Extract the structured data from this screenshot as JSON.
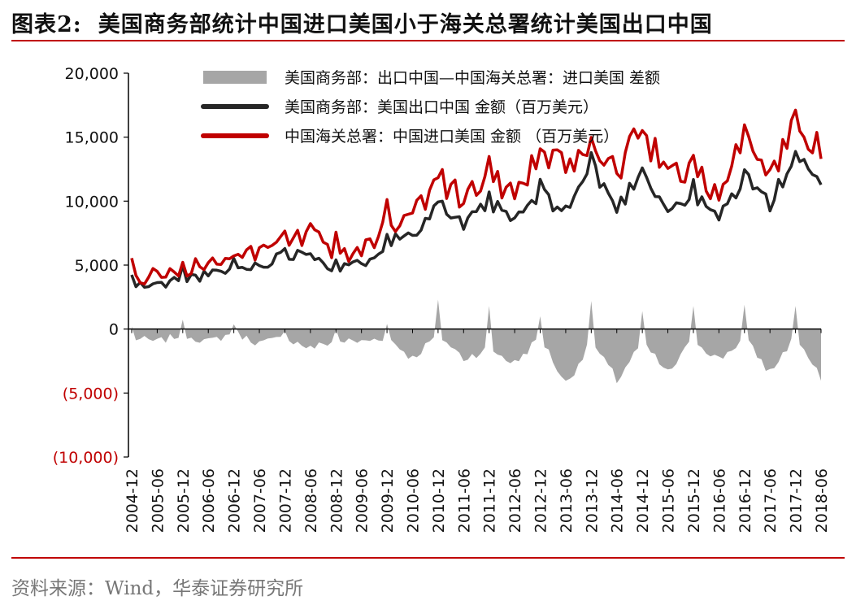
{
  "figure": {
    "label": "图表2:",
    "title": "美国商务部统计中国进口美国小于海关总署统计美国出口中国",
    "source": "资料来源：Wind，华泰证券研究所"
  },
  "colors": {
    "accent": "#c00000",
    "diff": "#a6a6a6",
    "us_series": "#262626",
    "cn_series": "#c00000",
    "negative_tick": "#c00000"
  },
  "chart_data": {
    "type": "line",
    "x_label_ticks": [
      "2004-12",
      "2005-06",
      "2005-12",
      "2006-06",
      "2006-12",
      "2007-06",
      "2007-12",
      "2008-06",
      "2008-12",
      "2009-06",
      "2009-12",
      "2010-06",
      "2010-12",
      "2011-06",
      "2011-12",
      "2012-06",
      "2012-12",
      "2013-06",
      "2013-12",
      "2014-06",
      "2014-12",
      "2015-06",
      "2015-12",
      "2016-06",
      "2016-12",
      "2017-06",
      "2017-12",
      "2018-06"
    ],
    "y_ticks": [
      {
        "value": 20000,
        "label": "20,000"
      },
      {
        "value": 15000,
        "label": "15,000"
      },
      {
        "value": 10000,
        "label": "10,000"
      },
      {
        "value": 5000,
        "label": "5,000"
      },
      {
        "value": 0,
        "label": "0"
      },
      {
        "value": -5000,
        "label": "(5,000)"
      },
      {
        "value": -10000,
        "label": "(10,000)"
      }
    ],
    "ylim": [
      -10000,
      20000
    ],
    "grid": false,
    "legend_position": "top",
    "series": [
      {
        "name": "美国商务部：出口中国—中国海关总署：进口美国 差额",
        "type": "area",
        "color": "#a6a6a6",
        "keys": [
          [
            "2004-12",
            -700
          ],
          [
            "2005-06",
            -1000
          ],
          [
            "2005-12",
            -400
          ],
          [
            "2006-06",
            -1000
          ],
          [
            "2006-12",
            -300
          ],
          [
            "2007-06",
            -1100
          ],
          [
            "2007-12",
            -700
          ],
          [
            "2008-06",
            -1500
          ],
          [
            "2008-12",
            -900
          ],
          [
            "2009-06",
            -1000
          ],
          [
            "2009-12",
            -600
          ],
          [
            "2010-06",
            -2300
          ],
          [
            "2010-12",
            -400
          ],
          [
            "2011-06",
            -2300
          ],
          [
            "2011-12",
            -1500
          ],
          [
            "2012-06",
            -2700
          ],
          [
            "2012-12",
            -600
          ],
          [
            "2013-06",
            -4300
          ],
          [
            "2013-12",
            -1000
          ],
          [
            "2014-06",
            -4000
          ],
          [
            "2014-12",
            -1000
          ],
          [
            "2015-06",
            -3500
          ],
          [
            "2015-12",
            -800
          ],
          [
            "2016-06",
            -2400
          ],
          [
            "2016-12",
            -700
          ],
          [
            "2017-06",
            -3400
          ],
          [
            "2017-12",
            -500
          ],
          [
            "2018-06",
            -4000
          ]
        ],
        "spikes": [
          [
            "2009-12",
            400
          ],
          [
            "2010-12",
            2300
          ],
          [
            "2011-12",
            1800
          ],
          [
            "2012-12",
            1000
          ],
          [
            "2013-12",
            2200
          ],
          [
            "2014-12",
            1400
          ],
          [
            "2015-12",
            1800
          ],
          [
            "2016-12",
            1900
          ],
          [
            "2017-12",
            1800
          ]
        ]
      },
      {
        "name": "美国商务部：美国出口中国 金额（百万美元）",
        "type": "line",
        "color": "#262626",
        "keys": [
          [
            "2004-12",
            3400
          ],
          [
            "2005-06",
            3400
          ],
          [
            "2005-12",
            4000
          ],
          [
            "2006-06",
            4200
          ],
          [
            "2006-12",
            4700
          ],
          [
            "2007-06",
            5000
          ],
          [
            "2007-12",
            5800
          ],
          [
            "2008-06",
            6100
          ],
          [
            "2008-12",
            4600
          ],
          [
            "2009-06",
            5100
          ],
          [
            "2009-12",
            6800
          ],
          [
            "2010-06",
            7500
          ],
          [
            "2010-12",
            9800
          ],
          [
            "2011-06",
            8000
          ],
          [
            "2011-12",
            9800
          ],
          [
            "2012-06",
            8500
          ],
          [
            "2012-12",
            10500
          ],
          [
            "2013-06",
            9200
          ],
          [
            "2013-12",
            12800
          ],
          [
            "2014-06",
            9400
          ],
          [
            "2014-12",
            12400
          ],
          [
            "2015-06",
            9300
          ],
          [
            "2015-12",
            10400
          ],
          [
            "2016-06",
            8700
          ],
          [
            "2016-12",
            11900
          ],
          [
            "2017-06",
            9800
          ],
          [
            "2017-12",
            13500
          ],
          [
            "2018-06",
            11000
          ]
        ]
      },
      {
        "name": "中国海关总署：中国进口美国 金额 （百万美元）",
        "type": "line",
        "color": "#c00000",
        "keys": [
          [
            "2004-12",
            4000
          ],
          [
            "2005-06",
            4200
          ],
          [
            "2005-12",
            4600
          ],
          [
            "2006-06",
            5200
          ],
          [
            "2006-12",
            5200
          ],
          [
            "2007-06",
            6000
          ],
          [
            "2007-12",
            6700
          ],
          [
            "2008-06",
            7400
          ],
          [
            "2008-12",
            5800
          ],
          [
            "2009-06",
            6100
          ],
          [
            "2009-12",
            8200
          ],
          [
            "2010-06",
            9000
          ],
          [
            "2010-12",
            11800
          ],
          [
            "2011-06",
            10200
          ],
          [
            "2011-12",
            12000
          ],
          [
            "2012-06",
            10500
          ],
          [
            "2012-12",
            13500
          ],
          [
            "2013-06",
            12500
          ],
          [
            "2013-12",
            14200
          ],
          [
            "2014-06",
            12200
          ],
          [
            "2014-12",
            15500
          ],
          [
            "2015-06",
            11900
          ],
          [
            "2015-12",
            12800
          ],
          [
            "2016-06",
            10500
          ],
          [
            "2016-12",
            14800
          ],
          [
            "2017-06",
            12000
          ],
          [
            "2017-12",
            16000
          ],
          [
            "2018-06",
            13800
          ]
        ]
      }
    ]
  }
}
